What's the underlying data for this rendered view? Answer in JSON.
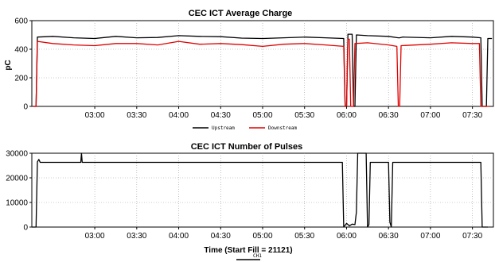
{
  "chart_data": [
    {
      "type": "line",
      "title": "CEC ICT Average Charge",
      "ylabel": "pC",
      "xlabel": "",
      "x_ticks": [
        "03:00",
        "03:30",
        "04:00",
        "04:30",
        "05:00",
        "05:30",
        "06:00",
        "06:30",
        "07:00",
        "07:30"
      ],
      "y_ticks": [
        "0",
        "200",
        "400",
        "600"
      ],
      "ylim": [
        0,
        600
      ],
      "xlim_minutes": [
        135,
        465
      ],
      "grid": true,
      "legend_position": "bottom-center",
      "series": [
        {
          "name": "Upstream",
          "color": "#000000",
          "points": [
            [
              136,
              0
            ],
            [
              138,
              0
            ],
            [
              139,
              485
            ],
            [
              150,
              490
            ],
            [
              165,
              480
            ],
            [
              180,
              475
            ],
            [
              195,
              490
            ],
            [
              210,
              480
            ],
            [
              225,
              482
            ],
            [
              240,
              495
            ],
            [
              255,
              490
            ],
            [
              270,
              488
            ],
            [
              285,
              478
            ],
            [
              300,
              475
            ],
            [
              315,
              480
            ],
            [
              330,
              485
            ],
            [
              345,
              480
            ],
            [
              358,
              475
            ],
            [
              359,
              0
            ],
            [
              360,
              0
            ],
            [
              361,
              505
            ],
            [
              364,
              505
            ],
            [
              365,
              0
            ],
            [
              366,
              0
            ],
            [
              367,
              500
            ],
            [
              375,
              495
            ],
            [
              390,
              490
            ],
            [
              397,
              480
            ],
            [
              398,
              480
            ],
            [
              400,
              485
            ],
            [
              420,
              480
            ],
            [
              435,
              490
            ],
            [
              450,
              485
            ],
            [
              456,
              480
            ],
            [
              457,
              0
            ],
            [
              460,
              0
            ],
            [
              461,
              475
            ],
            [
              464,
              475
            ]
          ]
        },
        {
          "name": "Downstream",
          "color": "#e00000",
          "points": [
            [
              136,
              0
            ],
            [
              138,
              0
            ],
            [
              139,
              455
            ],
            [
              150,
              440
            ],
            [
              165,
              430
            ],
            [
              180,
              425
            ],
            [
              195,
              440
            ],
            [
              210,
              440
            ],
            [
              225,
              430
            ],
            [
              240,
              455
            ],
            [
              255,
              435
            ],
            [
              270,
              440
            ],
            [
              285,
              432
            ],
            [
              300,
              420
            ],
            [
              315,
              435
            ],
            [
              330,
              440
            ],
            [
              345,
              430
            ],
            [
              358,
              420
            ],
            [
              359,
              0
            ],
            [
              360,
              0
            ],
            [
              361,
              470
            ],
            [
              362,
              470
            ],
            [
              363,
              0
            ],
            [
              365,
              0
            ],
            [
              366,
              440
            ],
            [
              375,
              445
            ],
            [
              390,
              430
            ],
            [
              396,
              420
            ],
            [
              397,
              0
            ],
            [
              398,
              0
            ],
            [
              399,
              425
            ],
            [
              420,
              435
            ],
            [
              435,
              445
            ],
            [
              450,
              440
            ],
            [
              455,
              440
            ],
            [
              456,
              0
            ],
            [
              462,
              0
            ]
          ]
        }
      ]
    },
    {
      "type": "line",
      "title": "CEC ICT Number of Pulses",
      "ylabel": "",
      "xlabel": "Time (Start Fill = 21121)",
      "x_ticks": [
        "03:00",
        "03:30",
        "04:00",
        "04:30",
        "05:00",
        "05:30",
        "06:00",
        "06:30",
        "07:00",
        "07:30"
      ],
      "y_ticks": [
        "0",
        "10000",
        "20000",
        "30000"
      ],
      "ylim": [
        0,
        30000
      ],
      "xlim_minutes": [
        135,
        465
      ],
      "grid": true,
      "legend_position": "bottom-center",
      "series": [
        {
          "name": "CH1",
          "color": "#000000",
          "points": [
            [
              135,
              0
            ],
            [
              138,
              0
            ],
            [
              139,
              26500
            ],
            [
              140,
              27500
            ],
            [
              141,
              26300
            ],
            [
              170,
              26300
            ],
            [
              170.5,
              30000
            ],
            [
              171,
              26300
            ],
            [
              250,
              26300
            ],
            [
              300,
              26300
            ],
            [
              357,
              26300
            ],
            [
              358,
              0
            ],
            [
              360,
              1500
            ],
            [
              362,
              500
            ],
            [
              364,
              1200
            ],
            [
              366,
              1000
            ],
            [
              367,
              6000
            ],
            [
              368,
              30000
            ],
            [
              374,
              30000
            ],
            [
              375,
              0
            ],
            [
              376,
              1000
            ],
            [
              377,
              26300
            ],
            [
              390,
              26300
            ],
            [
              391,
              2000
            ],
            [
              392,
              0
            ],
            [
              393,
              26300
            ],
            [
              420,
              26300
            ],
            [
              456,
              26300
            ],
            [
              457,
              0
            ],
            [
              460,
              0
            ],
            [
              461,
              0
            ]
          ]
        }
      ]
    }
  ]
}
